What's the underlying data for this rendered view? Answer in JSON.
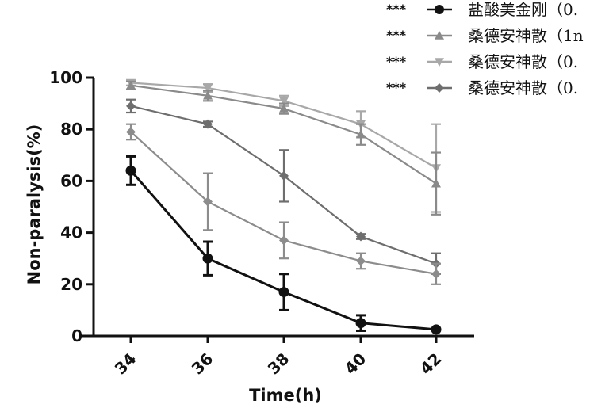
{
  "chart_data": {
    "type": "line",
    "xlabel": "Time(h)",
    "ylabel": "Non-paralysis(%)",
    "x": [
      34,
      36,
      38,
      40,
      42
    ],
    "x_tick_labels": [
      "34",
      "36",
      "38",
      "40",
      "42"
    ],
    "ylim": [
      0,
      100
    ],
    "y_ticks": [
      0,
      20,
      40,
      60,
      80,
      100
    ],
    "grid": false,
    "legend_position": "top-right",
    "series": [
      {
        "name": "盐酸美金刚（0.",
        "significance": "***",
        "color": "#111111",
        "marker": "circle",
        "values": [
          64,
          30,
          17,
          5,
          2.5
        ],
        "errors": [
          5.5,
          6.5,
          7,
          3,
          0
        ]
      },
      {
        "name": "桑德安神散（1n",
        "significance": "***",
        "color": "#8a8a8a",
        "marker": "triangle-up",
        "values": [
          97,
          93,
          88,
          78,
          59
        ],
        "errors": [
          1.5,
          2,
          2,
          4,
          12
        ]
      },
      {
        "name": "桑德安神散（0.",
        "significance": "***",
        "color": "#a8a8a8",
        "marker": "triangle-down",
        "values": [
          98,
          96,
          91,
          82,
          65
        ],
        "errors": [
          1,
          1.5,
          2,
          5,
          17
        ]
      },
      {
        "name": "桑德安神散（0.",
        "significance": "***",
        "color": "#6e6e6e",
        "marker": "diamond",
        "values": [
          89,
          82,
          62,
          38.5,
          28
        ],
        "errors": [
          2.5,
          1,
          10,
          1,
          4
        ]
      },
      {
        "name": "",
        "significance": "",
        "color": "#8c8c8c",
        "marker": "diamond",
        "values": [
          79,
          52,
          37,
          29,
          24
        ],
        "errors": [
          3,
          11,
          7,
          3,
          4
        ]
      }
    ]
  }
}
